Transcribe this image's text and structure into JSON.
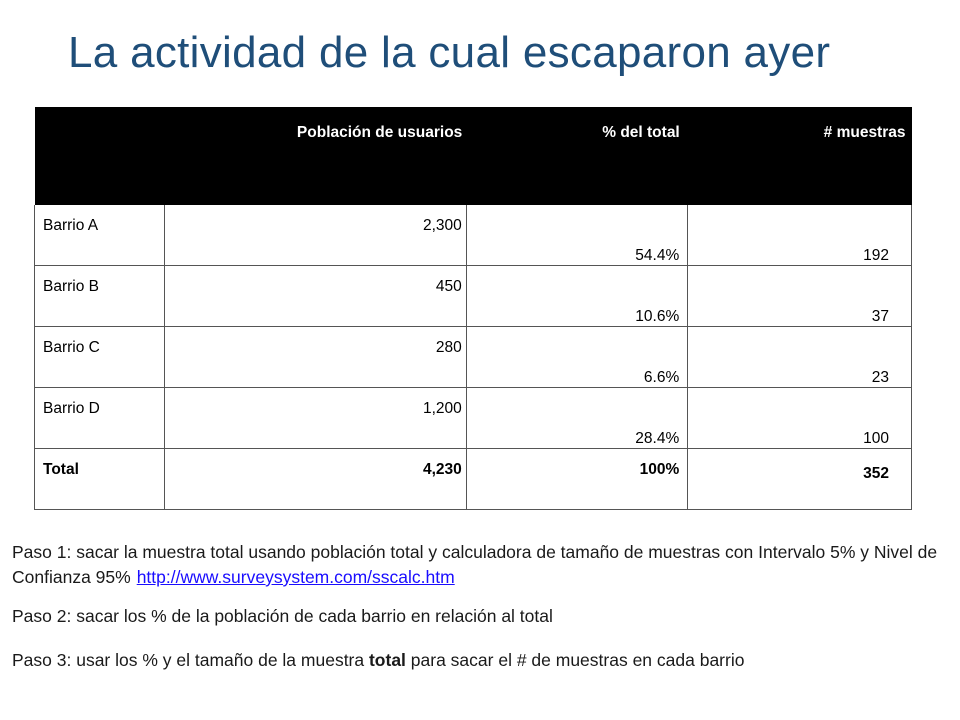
{
  "slide": {
    "title": "La actividad de la cual escaparon ayer"
  },
  "table": {
    "headers": [
      "",
      "Población de usuarios",
      "% del total",
      "# muestras"
    ],
    "rows": [
      {
        "name": "Barrio A",
        "population": "2,300",
        "percent": "54.4%",
        "samples": "192"
      },
      {
        "name": "Barrio B",
        "population": "450",
        "percent": "10.6%",
        "samples": "37"
      },
      {
        "name": "Barrio C",
        "population": "280",
        "percent": "6.6%",
        "samples": "23"
      },
      {
        "name": "Barrio D",
        "population": "1,200",
        "percent": "28.4%",
        "samples": "100"
      }
    ],
    "total": {
      "name": "Total",
      "population": "4,230",
      "percent": "100%",
      "samples": "352"
    }
  },
  "steps": {
    "step1_text": "Paso 1: sacar la muestra total usando población total y calculadora de tamaño de muestras con Intervalo 5% y Nivel de Confianza 95%",
    "step1_link": "http://www.surveysystem.com/sscalc.htm",
    "step2_text": "Paso 2: sacar los % de la población de cada barrio en relación al total",
    "step3_before": "Paso 3: usar los % y el tamaño de la muestra ",
    "step3_bold": "total",
    "step3_after": " para sacar el # de muestras en cada barrio"
  }
}
